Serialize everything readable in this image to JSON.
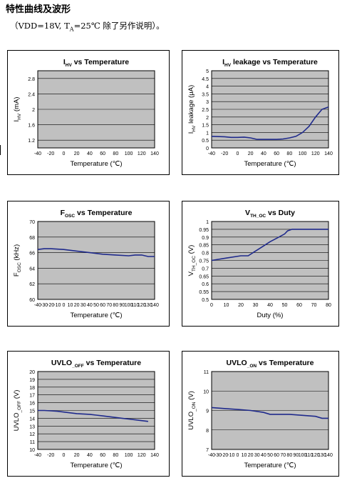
{
  "heading": "特性曲线及波形",
  "conditions": {
    "open": "（VDD=18V, T",
    "sub": "A",
    "close": "=25℃  除了另作说明）。"
  },
  "chart_data": [
    {
      "type": "line",
      "title_main": "I",
      "title_sub": "HV",
      "title_rest": " vs Temperature",
      "ylabel_main": "I",
      "ylabel_sub": "HV",
      "ylabel_rest": " (mA)",
      "xlabel": "Temperature (℃)",
      "x_ticks": [
        -40,
        -20,
        0,
        20,
        40,
        60,
        80,
        100,
        120,
        140
      ],
      "y_ticks": [
        1.2,
        1.6,
        2.0,
        2.4,
        2.8
      ],
      "xlim": [
        -40,
        140
      ],
      "ylim": [
        1.0,
        3.0
      ],
      "grid": true,
      "series": [
        {
          "x": [],
          "y": []
        }
      ]
    },
    {
      "type": "line",
      "title_main": "I",
      "title_sub": "HV",
      "title_rest": " leakage vs Temperature",
      "ylabel_main": "I",
      "ylabel_sub": "HV",
      "ylabel_rest": " leakage (μA)",
      "xlabel": "Temperature (℃)",
      "x_ticks": [
        -40,
        -20,
        0,
        20,
        40,
        60,
        80,
        100,
        120,
        140
      ],
      "y_ticks": [
        0,
        0.5,
        1,
        1.5,
        2,
        2.5,
        3,
        3.5,
        4,
        4.5,
        5
      ],
      "xlim": [
        -40,
        140
      ],
      "ylim": [
        0,
        5
      ],
      "grid": true,
      "series": [
        {
          "x": [
            -40,
            -20,
            -10,
            0,
            10,
            20,
            30,
            40,
            50,
            60,
            70,
            80,
            90,
            100,
            110,
            120,
            130,
            140
          ],
          "y": [
            0.75,
            0.72,
            0.68,
            0.68,
            0.7,
            0.65,
            0.55,
            0.55,
            0.55,
            0.55,
            0.58,
            0.65,
            0.75,
            1.0,
            1.4,
            2.0,
            2.5,
            2.65
          ]
        }
      ]
    },
    {
      "type": "line",
      "title_main": "F",
      "title_sub": "OSC",
      "title_rest": " vs Temperature",
      "ylabel_main": "F",
      "ylabel_sub": "OSC",
      "ylabel_rest": " (kHz)",
      "xlabel": "Temperature    (℃)",
      "x_ticks": [
        -40,
        -30,
        -20,
        -10,
        0,
        10,
        20,
        30,
        40,
        50,
        60,
        70,
        80,
        90,
        100,
        110,
        120,
        130,
        140
      ],
      "y_ticks": [
        60,
        62,
        64,
        66,
        68,
        70
      ],
      "xlim": [
        -40,
        140
      ],
      "ylim": [
        60,
        70
      ],
      "grid": true,
      "series": [
        {
          "x": [
            -40,
            -30,
            -20,
            0,
            20,
            40,
            60,
            80,
            100,
            110,
            120,
            130,
            140
          ],
          "y": [
            66.4,
            66.5,
            66.5,
            66.4,
            66.2,
            66.0,
            65.8,
            65.7,
            65.6,
            65.7,
            65.7,
            65.5,
            65.5
          ]
        }
      ]
    },
    {
      "type": "line",
      "title_main": "V",
      "title_sub": "TH_OC",
      "title_rest": " vs Duty",
      "ylabel_main": "V",
      "ylabel_sub": "TH_OC",
      "ylabel_rest": " (V)",
      "xlabel": "Duty (%)",
      "x_ticks": [
        0,
        10,
        20,
        30,
        40,
        50,
        60,
        70,
        80
      ],
      "y_ticks": [
        0.5,
        0.55,
        0.6,
        0.65,
        0.7,
        0.75,
        0.8,
        0.85,
        0.9,
        0.95,
        1
      ],
      "xlim": [
        0,
        80
      ],
      "ylim": [
        0.5,
        1.0
      ],
      "grid": true,
      "series": [
        {
          "x": [
            0,
            10,
            20,
            25,
            30,
            35,
            40,
            45,
            50,
            52,
            55,
            60,
            70,
            80
          ],
          "y": [
            0.75,
            0.765,
            0.78,
            0.78,
            0.81,
            0.84,
            0.87,
            0.895,
            0.92,
            0.94,
            0.95,
            0.95,
            0.95,
            0.95
          ]
        }
      ]
    },
    {
      "type": "line",
      "title_main": "UVLO",
      "title_sub": "_OFF",
      "title_rest": " vs Temperature",
      "ylabel_main": "UVLO",
      "ylabel_sub": "_OFF",
      "ylabel_rest": " (V)",
      "xlabel": "Temperature    (℃)",
      "x_ticks": [
        -40,
        -20,
        0,
        20,
        40,
        60,
        80,
        100,
        120,
        140
      ],
      "y_ticks": [
        10,
        11,
        12,
        13,
        14,
        15,
        16,
        17,
        18,
        19,
        20
      ],
      "xlim": [
        -40,
        140
      ],
      "ylim": [
        10,
        20
      ],
      "grid": true,
      "series": [
        {
          "x": [
            -40,
            -30,
            -20,
            -10,
            0,
            10,
            20,
            30,
            40,
            50,
            60,
            70,
            80,
            90,
            100,
            110,
            120,
            130
          ],
          "y": [
            15.0,
            15.0,
            14.95,
            14.9,
            14.8,
            14.7,
            14.6,
            14.55,
            14.5,
            14.4,
            14.3,
            14.2,
            14.1,
            14.0,
            13.9,
            13.8,
            13.7,
            13.6
          ]
        }
      ]
    },
    {
      "type": "line",
      "title_main": "UVLO",
      "title_sub": "_ON",
      "title_rest": " vs Temperature",
      "ylabel_main": "UVLO",
      "ylabel_sub": "_ON",
      "ylabel_rest": " (V)",
      "xlabel": "Temperature    (℃)",
      "x_ticks": [
        -40,
        -30,
        -20,
        -10,
        0,
        10,
        20,
        30,
        40,
        50,
        60,
        70,
        80,
        90,
        100,
        110,
        120,
        130,
        140
      ],
      "y_ticks": [
        7,
        8,
        9,
        10,
        11
      ],
      "xlim": [
        -40,
        140
      ],
      "ylim": [
        7,
        11
      ],
      "grid": true,
      "series": [
        {
          "x": [
            -40,
            -20,
            0,
            20,
            40,
            50,
            60,
            70,
            80,
            100,
            120,
            130,
            140
          ],
          "y": [
            9.15,
            9.1,
            9.05,
            9.0,
            8.9,
            8.8,
            8.8,
            8.8,
            8.8,
            8.75,
            8.7,
            8.6,
            8.6
          ]
        }
      ]
    }
  ]
}
